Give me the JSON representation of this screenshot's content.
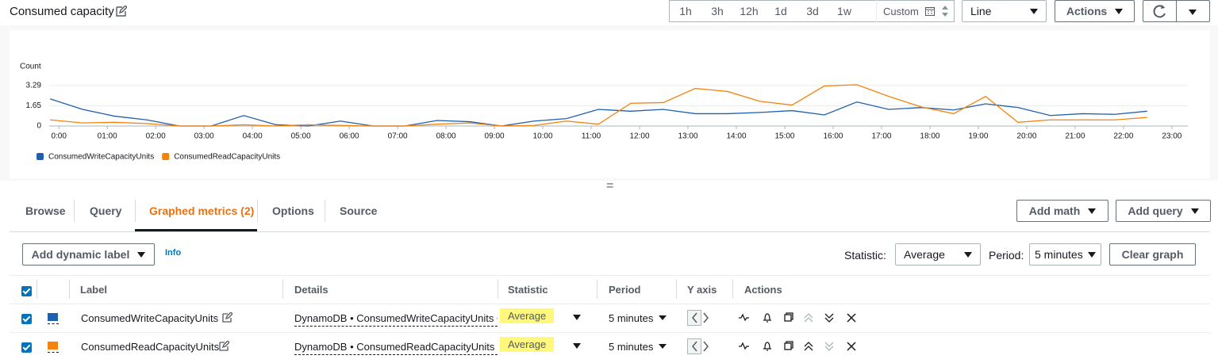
{
  "header": {
    "title": "Consumed capacity",
    "time_ranges": [
      "1h",
      "3h",
      "12h",
      "1d",
      "3d",
      "1w"
    ],
    "custom": "Custom",
    "chart_style": "Line",
    "actions": "Actions"
  },
  "chart_data": {
    "type": "line",
    "y_label": "Count",
    "x": [
      -0.18,
      0.49,
      1.15,
      1.82,
      2.49,
      3.15,
      3.82,
      4.49,
      5.15,
      5.82,
      6.49,
      7.15,
      7.82,
      8.49,
      9.15,
      9.82,
      10.49,
      11.15,
      11.82,
      12.49,
      13.15,
      13.82,
      14.49,
      15.15,
      15.82,
      16.49,
      17.15,
      17.82,
      18.49,
      19.15,
      19.82,
      20.49,
      21.15,
      21.82,
      22.49
    ],
    "xlim": [
      -0.2,
      23.33
    ],
    "xticks": [
      {
        "value": 0,
        "label": "0:00"
      },
      {
        "value": 1,
        "label": "01:00"
      },
      {
        "value": 2,
        "label": "02:00"
      },
      {
        "value": 3,
        "label": "03:00"
      },
      {
        "value": 4,
        "label": "04:00"
      },
      {
        "value": 5,
        "label": "05:00"
      },
      {
        "value": 6,
        "label": "06:00"
      },
      {
        "value": 7,
        "label": "07:00"
      },
      {
        "value": 8,
        "label": "08:00"
      },
      {
        "value": 9,
        "label": "09:00"
      },
      {
        "value": 10,
        "label": "10:00"
      },
      {
        "value": 11,
        "label": "11:00"
      },
      {
        "value": 12,
        "label": "12:00"
      },
      {
        "value": 13,
        "label": "13:00"
      },
      {
        "value": 14,
        "label": "14:00"
      },
      {
        "value": 15,
        "label": "15:00"
      },
      {
        "value": 16,
        "label": "16:00"
      },
      {
        "value": 17,
        "label": "17:00"
      },
      {
        "value": 18,
        "label": "18:00"
      },
      {
        "value": 19,
        "label": "19:00"
      },
      {
        "value": 20,
        "label": "20:00"
      },
      {
        "value": 21,
        "label": "21:00"
      },
      {
        "value": 22,
        "label": "22:00"
      },
      {
        "value": 23,
        "label": "23:00"
      }
    ],
    "ylim": [
      0,
      3.6
    ],
    "yticks": [
      0,
      1.65,
      3.29
    ],
    "grid": true,
    "series": [
      {
        "name": "ConsumedWriteCapacityUnits",
        "color": "#1f5fb0",
        "values": [
          2.2,
          1.35,
          0.8,
          0.5,
          0,
          0,
          0.85,
          0.1,
          0,
          0.4,
          0,
          0,
          0.45,
          0.35,
          0,
          0.4,
          0.6,
          1.35,
          1.2,
          1.35,
          1.0,
          1.0,
          1.1,
          1.25,
          0.9,
          1.95,
          1.35,
          1.5,
          1.3,
          1.8,
          1.5,
          0.85,
          1.0,
          0.95,
          1.2
        ]
      },
      {
        "name": "ConsumedReadCapacityUnits",
        "color": "#f5820d",
        "values": [
          0.5,
          0.25,
          0.3,
          0.2,
          0,
          0,
          0.1,
          0,
          0.1,
          0.05,
          0,
          0,
          0.15,
          0.25,
          0,
          0.05,
          0.4,
          0.15,
          1.85,
          1.9,
          3.05,
          2.8,
          2.0,
          1.7,
          3.25,
          3.35,
          2.4,
          1.55,
          1.0,
          2.4,
          0.3,
          0.5,
          0.5,
          0.5,
          0.7
        ]
      }
    ]
  },
  "tabs": [
    "Browse",
    "Query",
    "Graphed metrics (2)",
    "Options",
    "Source"
  ],
  "tab_buttons": [
    "Add math",
    "Add query"
  ],
  "toolbar": {
    "dynamic_label": "Add dynamic label",
    "info": "Info",
    "statistic_label": "Statistic:",
    "statistic": "Average",
    "period_label": "Period:",
    "period": "5 minutes",
    "clear": "Clear graph"
  },
  "table": {
    "headers": [
      "Label",
      "Details",
      "Statistic",
      "Period",
      "Y axis",
      "Actions"
    ],
    "rows": [
      [
        "ConsumedWriteCapacityUnits",
        "DynamoDB • ConsumedWriteCapacityUnits •",
        "Average",
        "5 minutes"
      ],
      [
        "ConsumedReadCapacityUnits",
        "DynamoDB • ConsumedReadCapacityUnits •",
        "Average",
        "5 minutes"
      ]
    ]
  }
}
